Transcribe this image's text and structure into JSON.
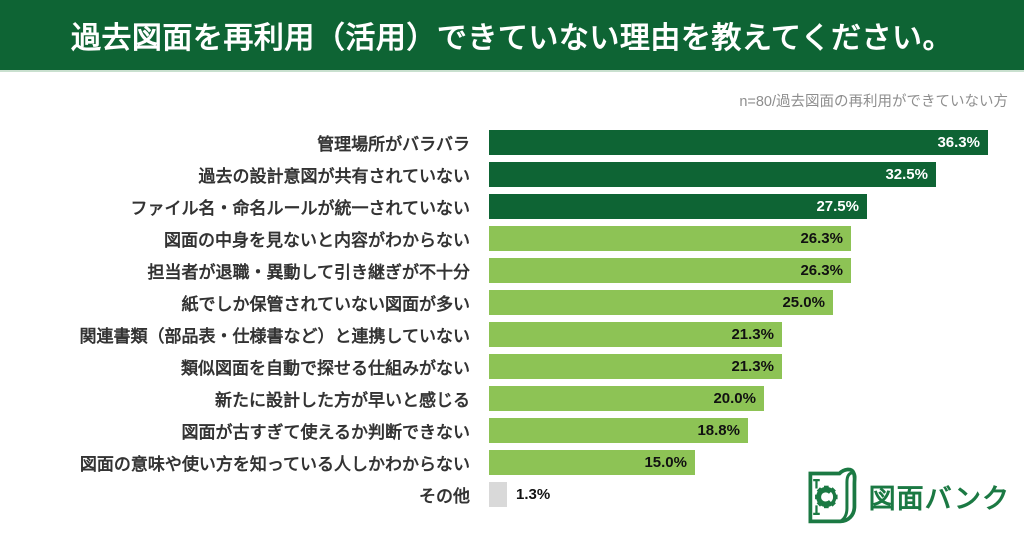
{
  "header": {
    "title": "過去図面を再利用（活用）できていない理由を教えてください。"
  },
  "subtitle": "n=80/過去図面の再利用ができていない方",
  "chart_data": {
    "type": "bar",
    "orientation": "horizontal",
    "title": "過去図面を再利用（活用）できていない理由を教えてください。",
    "annotation": "n=80/過去図面の再利用ができていない方",
    "xlabel": "",
    "ylabel": "",
    "xlim": [
      0,
      38
    ],
    "grid": false,
    "legend": "none",
    "categories": [
      "管理場所がバラバラ",
      "過去の設計意図が共有されていない",
      "ファイル名・命名ルールが統一されていない",
      "図面の中身を見ないと内容がわからない",
      "担当者が退職・異動して引き継ぎが不十分",
      "紙でしか保管されていない図面が多い",
      "関連書類（部品表・仕様書など）と連携していない",
      "類似図面を自動で探せる仕組みがない",
      "新たに設計した方が早いと感じる",
      "図面が古すぎて使えるか判断できない",
      "図面の意味や使い方を知っている人しかわからない",
      "その他"
    ],
    "values": [
      36.3,
      32.5,
      27.5,
      26.3,
      26.3,
      25.0,
      21.3,
      21.3,
      20.0,
      18.8,
      15.0,
      1.3
    ],
    "value_labels": [
      "36.3%",
      "32.5%",
      "27.5%",
      "26.3%",
      "26.3%",
      "25.0%",
      "21.3%",
      "21.3%",
      "20.0%",
      "18.8%",
      "15.0%",
      "1.3%"
    ],
    "styles": [
      "dark",
      "dark",
      "dark",
      "light",
      "light",
      "light",
      "light",
      "light",
      "light",
      "light",
      "light",
      "gray"
    ],
    "label_outside": [
      false,
      false,
      false,
      false,
      false,
      false,
      false,
      false,
      false,
      false,
      false,
      true
    ]
  },
  "colors": {
    "header_bg": "#0e6434",
    "palette": {
      "dark": "#0e6434",
      "light": "#8dc355",
      "gray": "#d9d9d9"
    },
    "value_text_on_dark": "#ffffff",
    "value_text_on_light": "#111111",
    "category_text": "#333333",
    "subtitle_text": "#8e8e8e",
    "logo_green": "#1b7943"
  },
  "logo": {
    "icon": "drawing-gear-icon",
    "text": "図面バンク"
  }
}
